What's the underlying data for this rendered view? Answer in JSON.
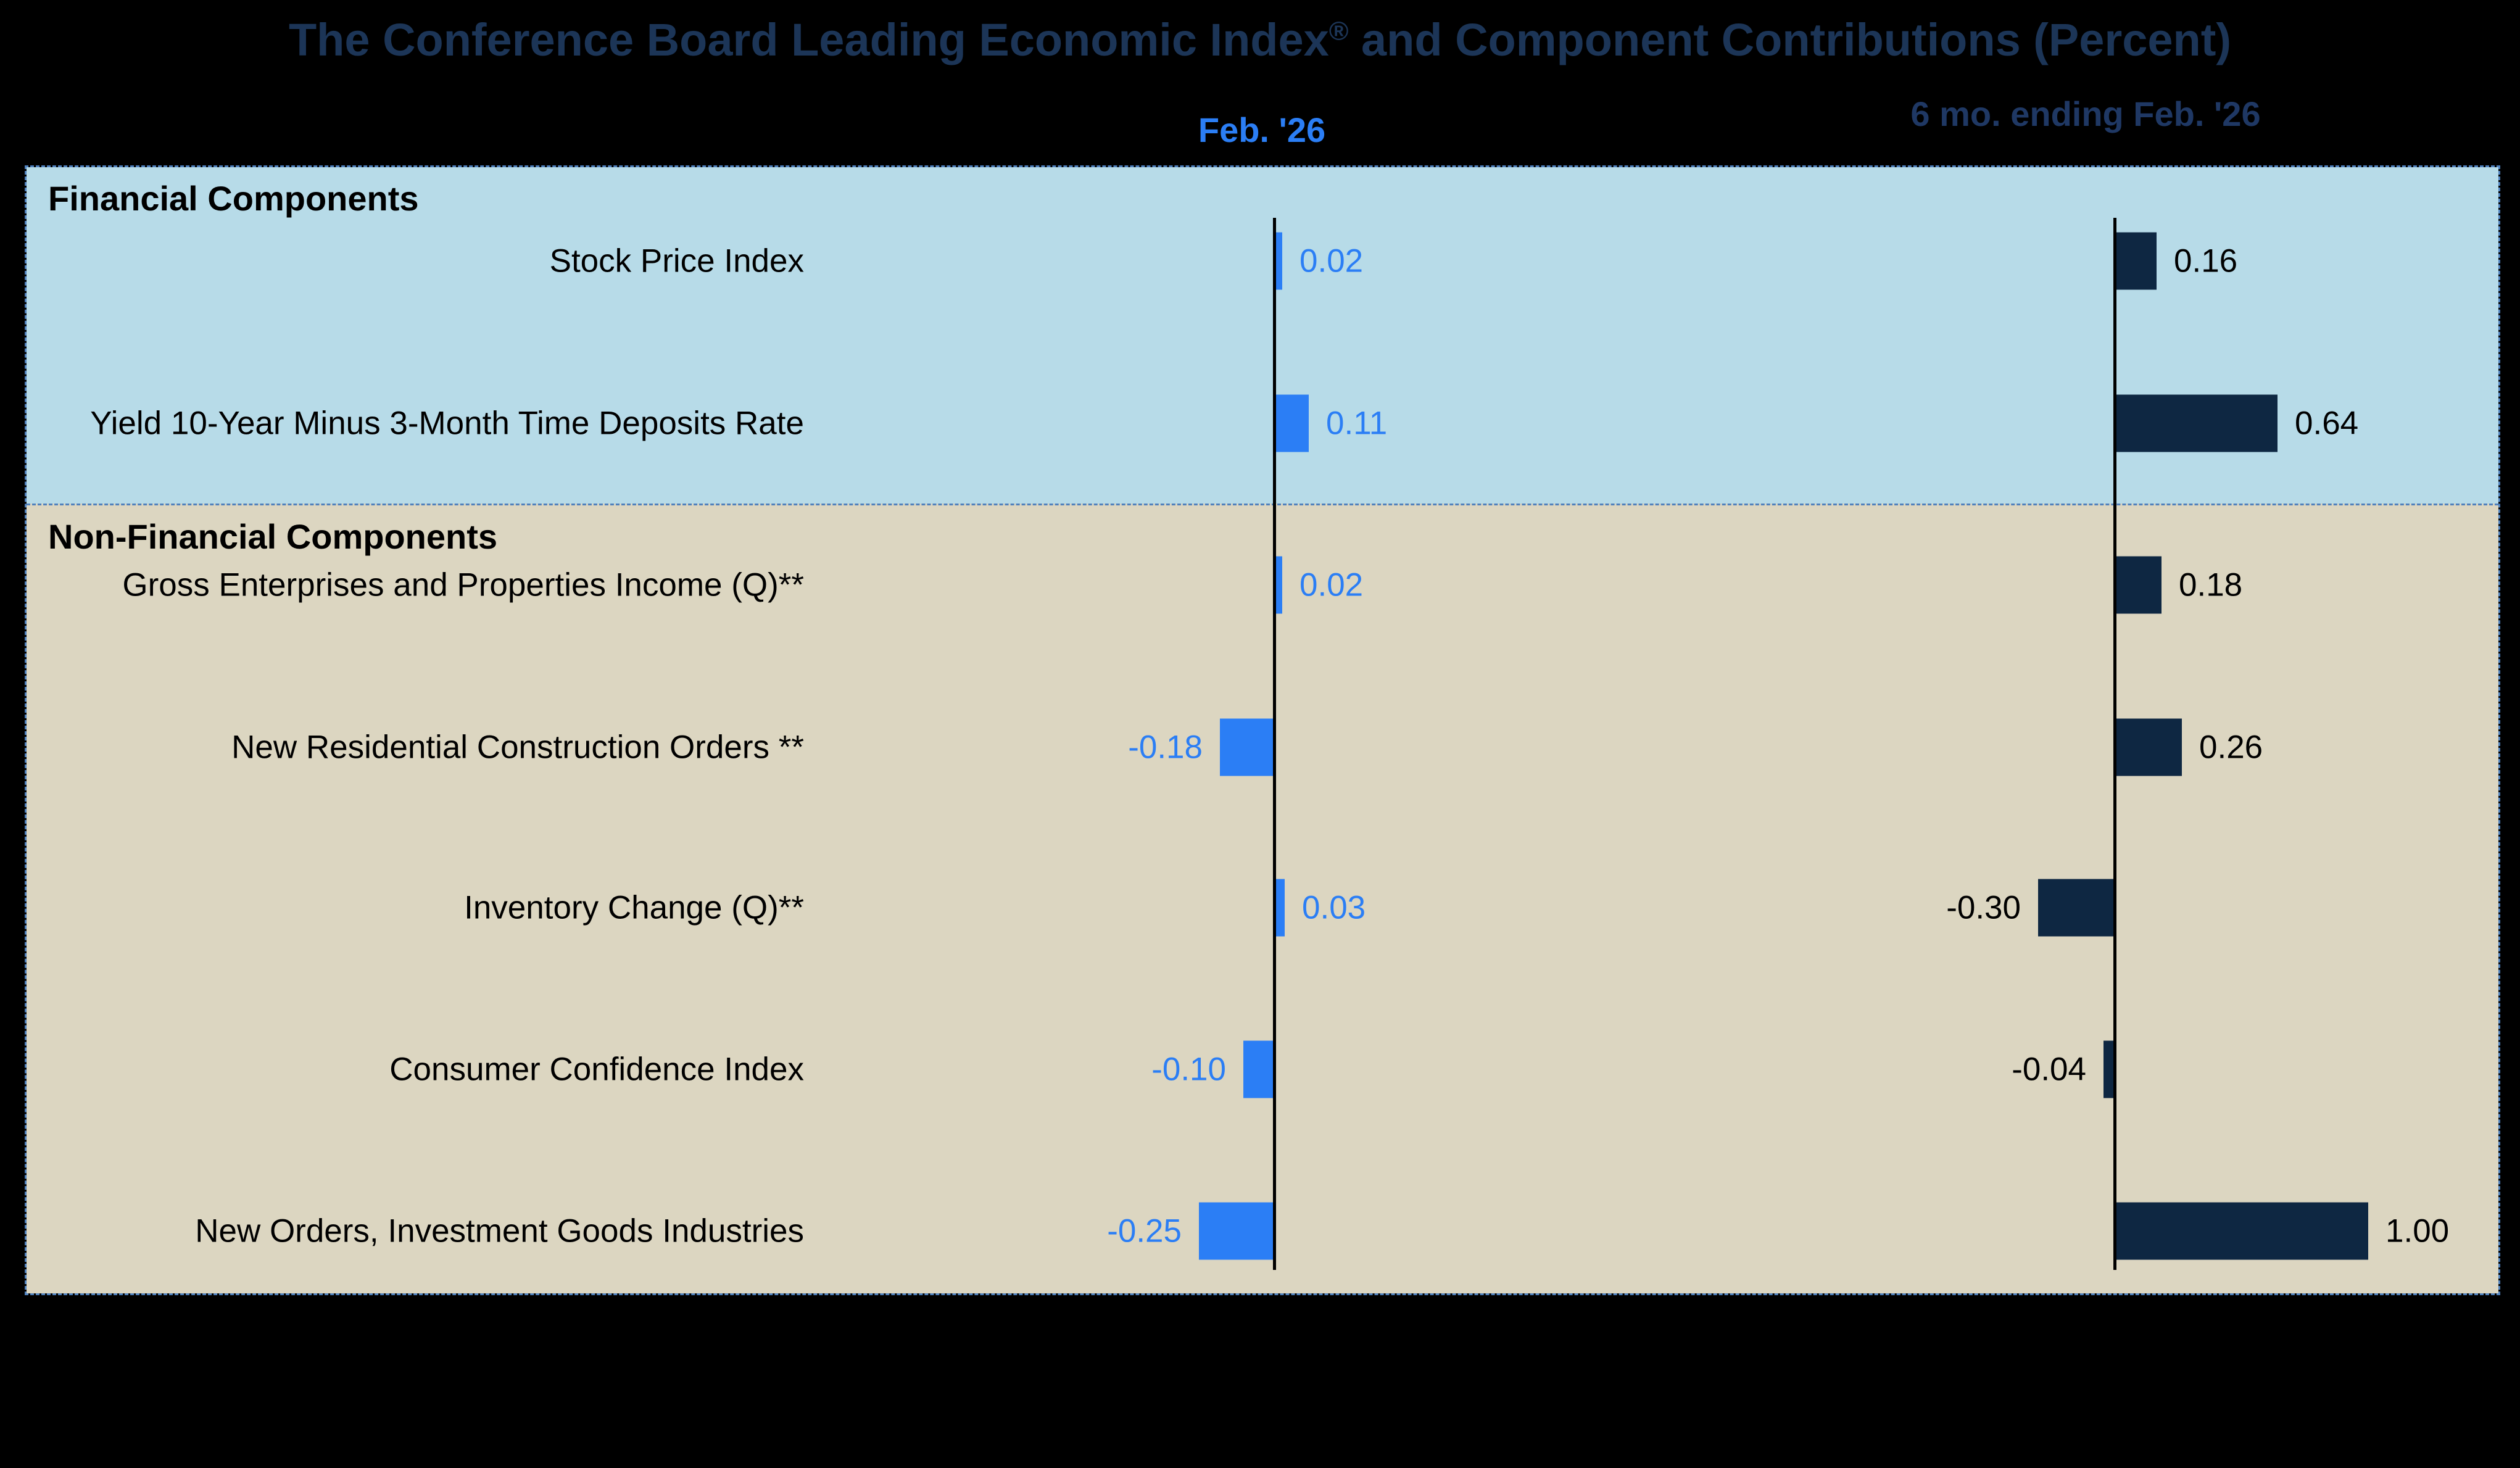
{
  "title": {
    "text_before_reg": "The Conference Board Leading Economic Index",
    "registered_mark": "®",
    "text_after_reg": " and Component Contributions (Percent)"
  },
  "colors": {
    "page_background": "#000000",
    "title_text": "#1c3557",
    "feb_accent": "#2b7ef5",
    "six_month_accent": "#1f3864",
    "feb_bar": "#2b7ef5",
    "six_month_bar": "#0e2742",
    "financial_section_background": "#b7dbe8",
    "non_financial_section_background": "#dcd6c1",
    "dashed_border": "#4f81bd",
    "axis_line": "#000000"
  },
  "chart_data": {
    "type": "bar",
    "orientation": "horizontal",
    "title": "The Conference Board Leading Economic Index® and Component Contributions (Percent)",
    "categories": [
      "Stock Price Index",
      "Yield 10-Year Minus 3-Month Time Deposits Rate",
      "Gross Enterprises and Properties Income (Q)**",
      "New Residential Construction Orders **",
      "Inventory Change (Q)**",
      "Consumer Confidence Index",
      "New Orders, Investment Goods Industries"
    ],
    "series": [
      {
        "name": "Feb. '26",
        "values": [
          0.02,
          0.11,
          0.02,
          -0.18,
          0.03,
          -0.1,
          -0.25
        ],
        "labels": [
          "0.02",
          "0.11",
          "0.02",
          "-0.18",
          "0.03",
          "-0.10",
          "-0.25"
        ]
      },
      {
        "name": "6 mo. ending Feb. '26",
        "values": [
          0.16,
          0.64,
          0.18,
          0.26,
          -0.3,
          -0.04,
          1.0
        ],
        "labels": [
          "0.16",
          "0.64",
          "0.18",
          "0.26",
          "-0.30",
          "-0.04",
          "1.00"
        ]
      }
    ],
    "sections": [
      {
        "label": "Financial Components",
        "rows": [
          0,
          1
        ]
      },
      {
        "label": "Non-Financial Components",
        "rows": [
          2,
          3,
          4,
          5,
          6
        ]
      }
    ],
    "value_labels": "outside bar ends, two decimals",
    "axis_ranges_hidden": true,
    "grid": false,
    "legend": "none (two column headers above panels)"
  }
}
